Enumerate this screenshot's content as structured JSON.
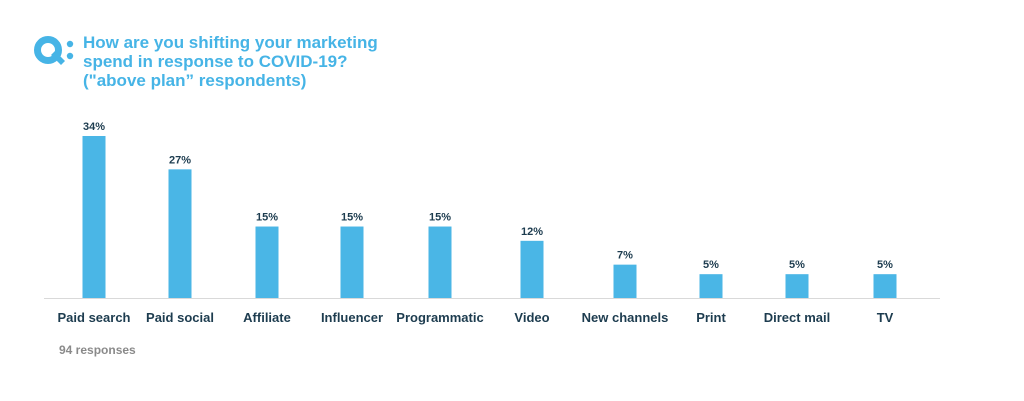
{
  "question": {
    "badge": "Q:",
    "text": "How are you shifting your marketing\nspend in response to COVID-19?\n(\"above plan” respondents)"
  },
  "footnote": "94 responses",
  "colors": {
    "bar": "#4ab6e6",
    "accent": "#46b4e6",
    "label": "#1d3c4f",
    "axis": "#d9d9d9",
    "footnote": "#8a8a8a"
  },
  "chart_data": {
    "type": "bar",
    "title": "",
    "xlabel": "",
    "ylabel": "",
    "ylim": [
      0,
      34
    ],
    "grid": false,
    "value_suffix": "%",
    "categories": [
      "Paid search",
      "Paid social",
      "Affiliate",
      "Influencer",
      "Programmatic",
      "Video",
      "New channels",
      "Print",
      "Direct mail",
      "TV"
    ],
    "values": [
      34,
      27,
      15,
      15,
      15,
      12,
      7,
      5,
      5,
      5
    ],
    "data_labels": [
      "34%",
      "27%",
      "15%",
      "15%",
      "15%",
      "12%",
      "7%",
      "5%",
      "5%",
      "5%"
    ]
  }
}
